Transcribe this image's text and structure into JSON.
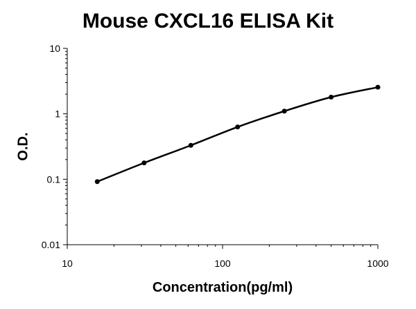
{
  "chart_data": {
    "type": "line",
    "title": "Mouse CXCL16 ELISA Kit",
    "xlabel": "Concentration(pg/ml)",
    "ylabel": "O.D.",
    "x_scale": "log",
    "y_scale": "log",
    "xlim": [
      10,
      1000
    ],
    "ylim": [
      0.01,
      10
    ],
    "x_ticks": [
      "10",
      "100",
      "1000"
    ],
    "y_ticks": [
      "0.01",
      "0.1",
      "1",
      "10"
    ],
    "grid": false,
    "legend": "none",
    "series": [
      {
        "x": [
          15.6,
          31.25,
          62.5,
          125,
          250,
          500,
          1000
        ],
        "y": [
          0.092,
          0.178,
          0.33,
          0.63,
          1.1,
          1.8,
          2.55
        ]
      }
    ],
    "colors": {
      "line": "#000000",
      "marker": "#000000",
      "axis": "#000000"
    }
  }
}
